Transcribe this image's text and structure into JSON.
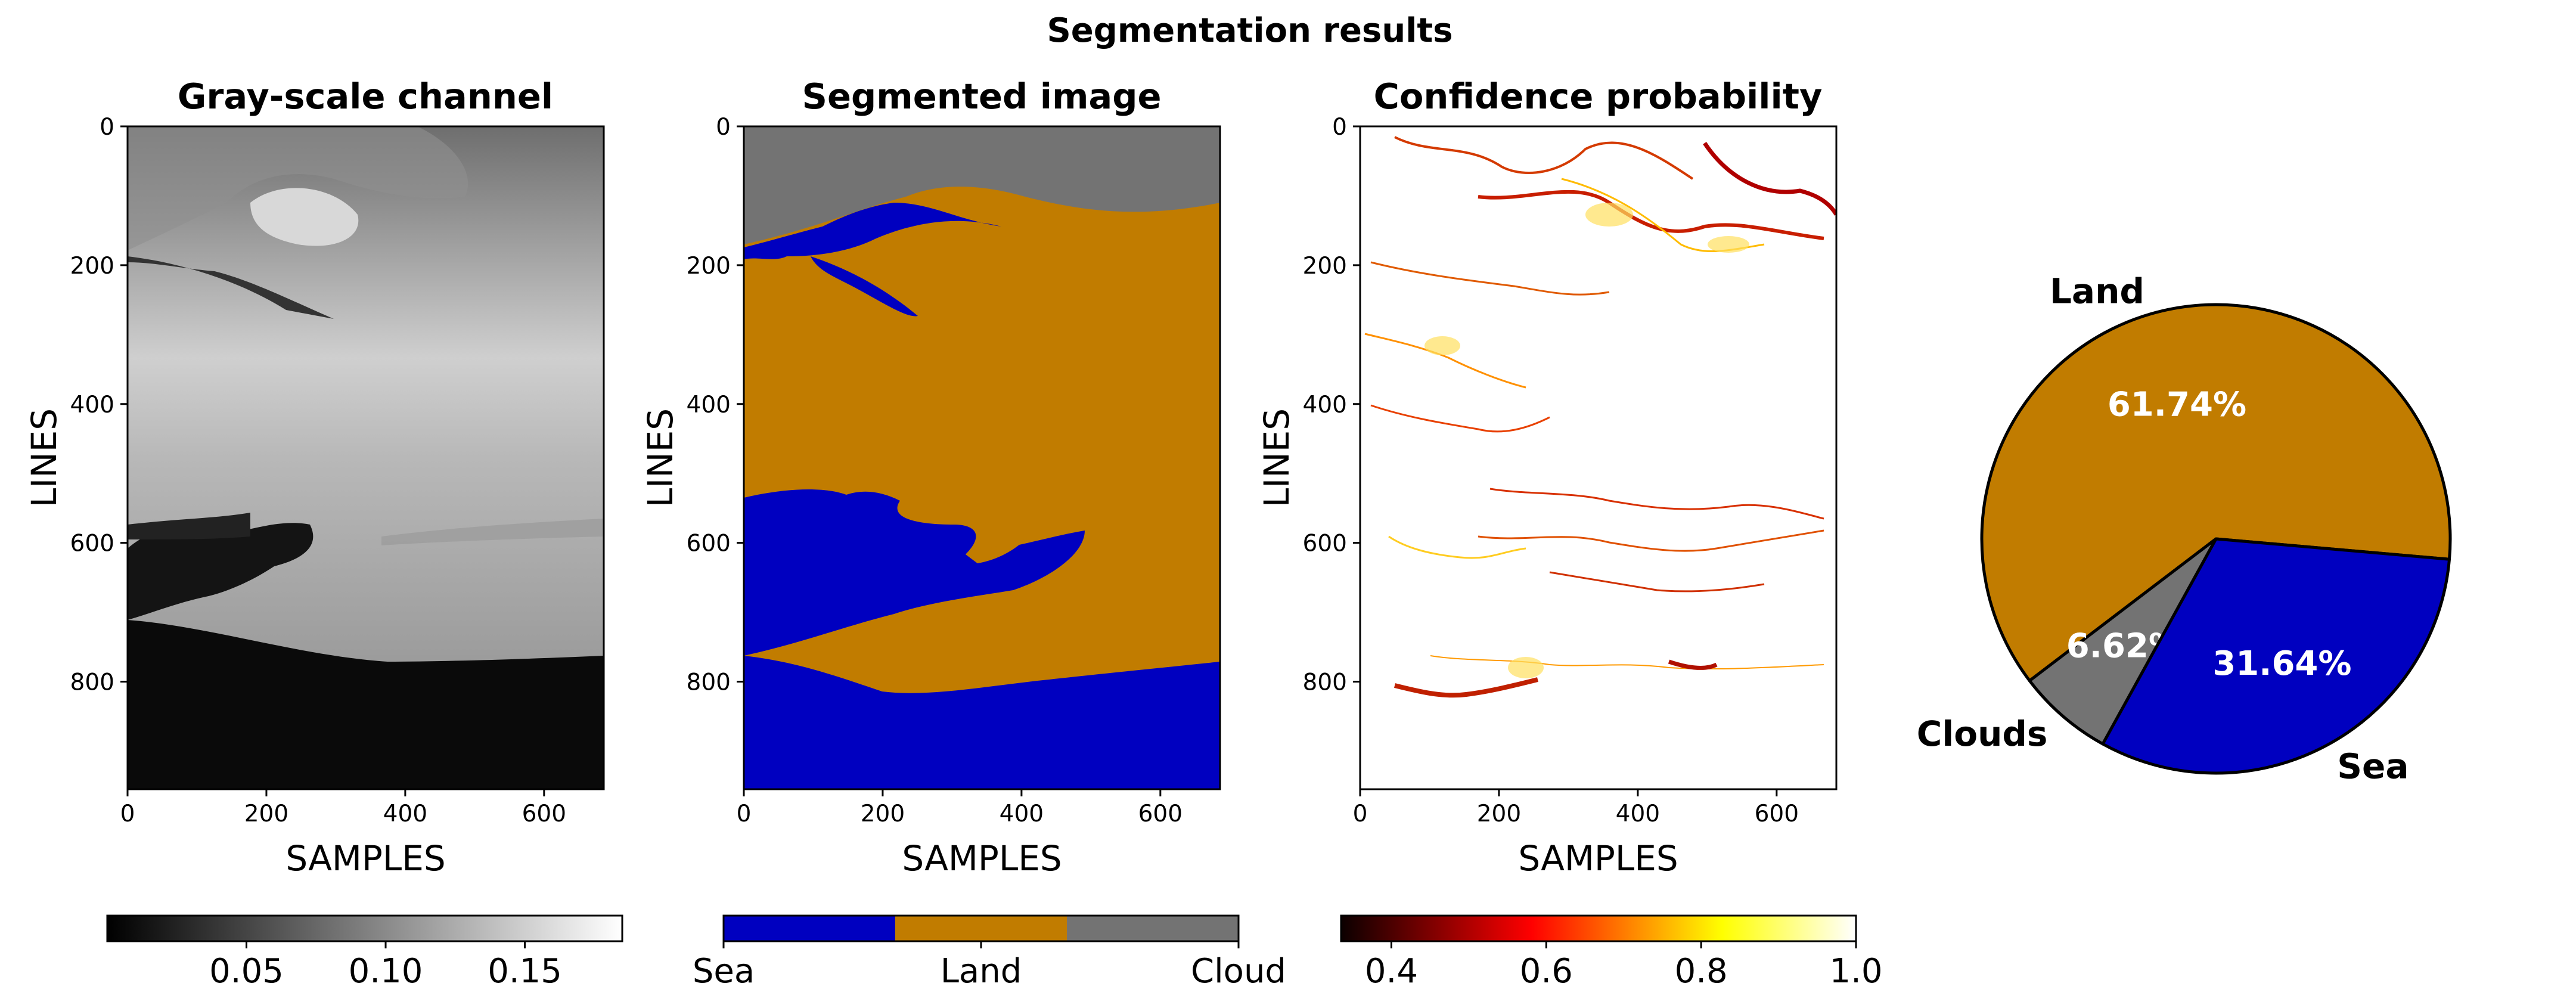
{
  "figure_title": "Segmentation results",
  "colors": {
    "sea": "#0000c0",
    "land": "#c17c00",
    "cloud": "#737373"
  },
  "chart_data": [
    {
      "type": "heatmap",
      "title": "Gray-scale channel",
      "xlabel": "SAMPLES",
      "ylabel": "LINES",
      "xlim": [
        0,
        686
      ],
      "ylim": [
        955,
        0
      ],
      "xticks": [
        0,
        200,
        400,
        600
      ],
      "yticks": [
        0,
        200,
        400,
        600,
        800
      ],
      "colormap": "gray",
      "colorbar": {
        "range": [
          0.0,
          0.185
        ],
        "ticks": [
          "0.05",
          "0.10",
          "0.15"
        ],
        "tick_values": [
          0.05,
          0.1,
          0.15
        ]
      }
    },
    {
      "type": "heatmap",
      "title": "Segmented image",
      "xlabel": "SAMPLES",
      "ylabel": "LINES",
      "xlim": [
        0,
        686
      ],
      "ylim": [
        955,
        0
      ],
      "xticks": [
        0,
        200,
        400,
        600
      ],
      "yticks": [
        0,
        200,
        400,
        600,
        800
      ],
      "classes": [
        "Sea",
        "Land",
        "Cloud"
      ],
      "colorbar": {
        "ticks": [
          "Sea",
          "Land",
          "Cloud"
        ]
      }
    },
    {
      "type": "heatmap",
      "title": "Confidence probability",
      "xlabel": "SAMPLES",
      "ylabel": "LINES",
      "xlim": [
        0,
        686
      ],
      "ylim": [
        955,
        0
      ],
      "xticks": [
        0,
        200,
        400,
        600
      ],
      "yticks": [
        0,
        200,
        400,
        600,
        800
      ],
      "colormap": "hot",
      "colorbar": {
        "range": [
          0.335,
          1.0
        ],
        "ticks": [
          "0.4",
          "0.6",
          "0.8",
          "1.0"
        ],
        "tick_values": [
          0.4,
          0.6,
          0.8,
          1.0
        ]
      }
    },
    {
      "type": "pie",
      "labels": [
        "Land",
        "Clouds",
        "Sea"
      ],
      "values": [
        61.74,
        6.62,
        31.64
      ],
      "value_labels": [
        "61.74%",
        "6.62%",
        "31.64%"
      ],
      "colors": [
        "#c17c00",
        "#737373",
        "#0000c0"
      ],
      "start_angle_deg": -5
    }
  ]
}
